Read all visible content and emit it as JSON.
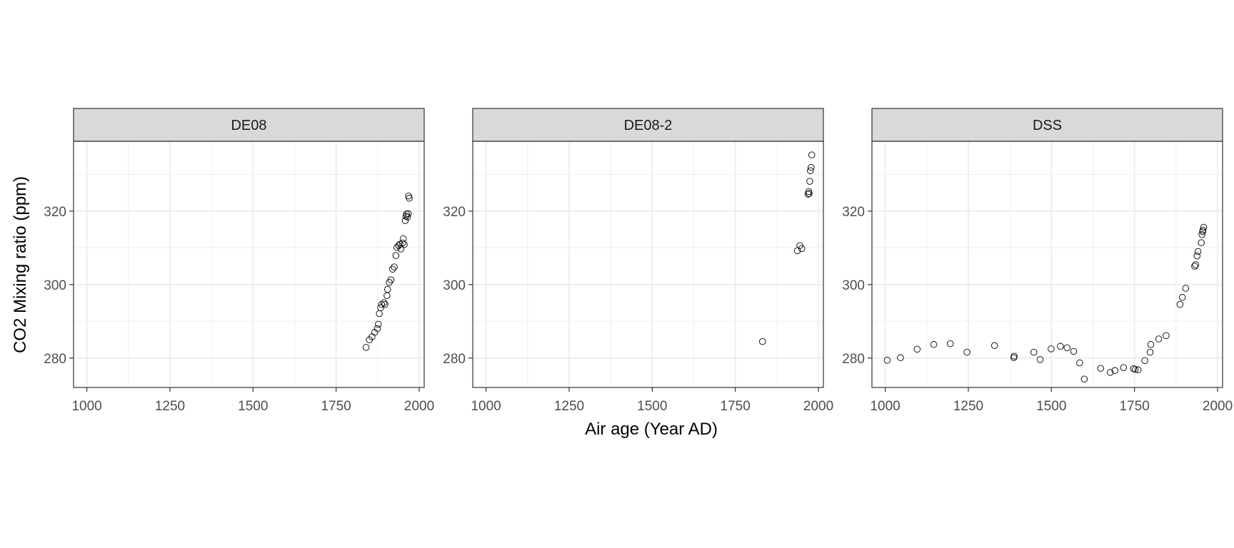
{
  "chart_data": {
    "type": "scatter",
    "xlabel": "Air age (Year AD)",
    "ylabel": "CO2 Mixing ratio (ppm)",
    "xlim": [
      960,
      2015
    ],
    "ylim": [
      272,
      339
    ],
    "x_ticks": [
      1000,
      1250,
      1500,
      1750,
      2000
    ],
    "y_ticks": [
      280,
      300,
      320
    ],
    "grid": true,
    "colors": {
      "point_stroke": "#000000",
      "strip_fill": "#d9d9d9",
      "grid": "#ebebeb",
      "panel_border": "#333333"
    },
    "panels": [
      {
        "name": "DE08",
        "points": [
          [
            1840,
            282.9
          ],
          [
            1850,
            285.0
          ],
          [
            1858,
            285.8
          ],
          [
            1866,
            287.0
          ],
          [
            1874,
            288.0
          ],
          [
            1877,
            289.2
          ],
          [
            1880,
            292.1
          ],
          [
            1884,
            293.7
          ],
          [
            1887,
            294.6
          ],
          [
            1894,
            295.1
          ],
          [
            1897,
            294.6
          ],
          [
            1903,
            297.0
          ],
          [
            1905,
            298.7
          ],
          [
            1910,
            300.6
          ],
          [
            1915,
            301.3
          ],
          [
            1920,
            304.2
          ],
          [
            1925,
            304.8
          ],
          [
            1930,
            307.9
          ],
          [
            1933,
            310.1
          ],
          [
            1938,
            310.6
          ],
          [
            1942,
            311.0
          ],
          [
            1945,
            309.7
          ],
          [
            1950,
            311.3
          ],
          [
            1952,
            312.5
          ],
          [
            1955,
            310.9
          ],
          [
            1958,
            317.4
          ],
          [
            1960,
            318.6
          ],
          [
            1962,
            319.2
          ],
          [
            1965,
            318.4
          ],
          [
            1967,
            319.3
          ],
          [
            1968,
            324.1
          ],
          [
            1970,
            323.5
          ]
        ]
      },
      {
        "name": "DE08-2",
        "points": [
          [
            1832,
            284.5
          ],
          [
            1937,
            309.2
          ],
          [
            1944,
            310.6
          ],
          [
            1950,
            309.8
          ],
          [
            1969,
            324.6
          ],
          [
            1971,
            325.3
          ],
          [
            1972,
            324.8
          ],
          [
            1974,
            328.1
          ],
          [
            1976,
            331.0
          ],
          [
            1978,
            331.9
          ],
          [
            1980,
            335.3
          ]
        ]
      },
      {
        "name": "DSS",
        "points": [
          [
            1006,
            279.4
          ],
          [
            1046,
            280.1
          ],
          [
            1096,
            282.4
          ],
          [
            1146,
            283.7
          ],
          [
            1196,
            283.9
          ],
          [
            1246,
            281.6
          ],
          [
            1329,
            283.4
          ],
          [
            1387,
            280.1
          ],
          [
            1388,
            280.5
          ],
          [
            1447,
            281.6
          ],
          [
            1466,
            279.6
          ],
          [
            1499,
            282.5
          ],
          [
            1527,
            283.2
          ],
          [
            1547,
            282.8
          ],
          [
            1567,
            281.8
          ],
          [
            1585,
            278.7
          ],
          [
            1599,
            274.3
          ],
          [
            1648,
            277.2
          ],
          [
            1677,
            276.1
          ],
          [
            1691,
            276.6
          ],
          [
            1717,
            277.4
          ],
          [
            1747,
            277.1
          ],
          [
            1752,
            276.9
          ],
          [
            1761,
            276.8
          ],
          [
            1781,
            279.3
          ],
          [
            1797,
            281.6
          ],
          [
            1799,
            283.7
          ],
          [
            1823,
            285.2
          ],
          [
            1845,
            286.1
          ],
          [
            1887,
            294.6
          ],
          [
            1894,
            296.5
          ],
          [
            1904,
            299.0
          ],
          [
            1931,
            305.0
          ],
          [
            1934,
            305.4
          ],
          [
            1938,
            307.8
          ],
          [
            1941,
            309.0
          ],
          [
            1951,
            311.4
          ],
          [
            1953,
            313.6
          ],
          [
            1955,
            314.4
          ],
          [
            1956,
            314.8
          ],
          [
            1958,
            315.6
          ]
        ]
      }
    ]
  }
}
